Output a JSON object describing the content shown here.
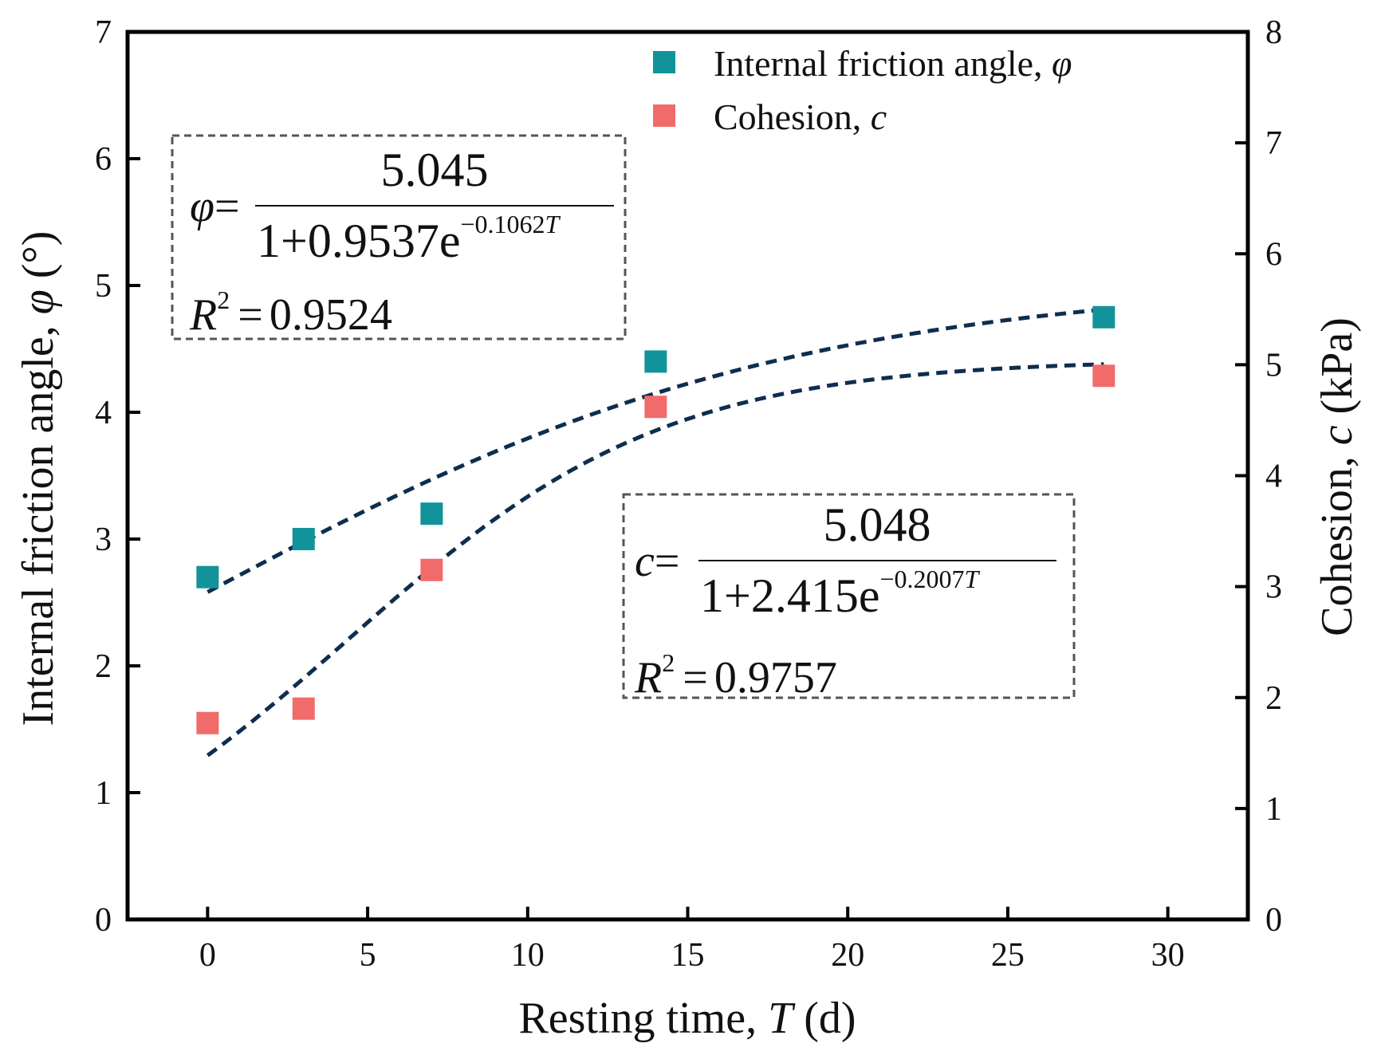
{
  "chart_data": {
    "type": "scatter",
    "title": "",
    "xlabel": "Resting time, T (d)",
    "xlabel_parts": {
      "prefix": "Resting time, ",
      "var": "T",
      "suffix": " (d)"
    },
    "ylabel_left": "Internal friction angle, φ (°)",
    "ylabel_left_parts": {
      "prefix": "Internal friction angle, ",
      "var": "φ",
      "suffix": " (°)"
    },
    "ylabel_right": "Cohesion, c (kPa)",
    "ylabel_right_parts": {
      "prefix": "Cohesion, ",
      "var": "c",
      "suffix": " (kPa)"
    },
    "xlim": [
      -2.5,
      32.5
    ],
    "ylim_left": [
      0,
      7
    ],
    "ylim_right": [
      0,
      8
    ],
    "x_ticks": [
      0,
      5,
      10,
      15,
      20,
      25,
      30
    ],
    "y_left_ticks": [
      0,
      1,
      2,
      3,
      4,
      5,
      6,
      7
    ],
    "y_right_ticks": [
      0,
      1,
      2,
      3,
      4,
      5,
      6,
      7,
      8
    ],
    "grid": false,
    "legend_position": "top-right",
    "series": [
      {
        "name": "Internal friction angle, φ",
        "legend_prefix": "Internal friction angle, ",
        "legend_var": "φ",
        "axis": "left",
        "color": "#12939A",
        "marker": "square",
        "x": [
          0,
          3,
          7,
          14,
          28
        ],
        "y": [
          2.7,
          3.0,
          3.2,
          4.4,
          4.75
        ],
        "fit": {
          "type": "logistic",
          "a": 5.045,
          "b": 0.9537,
          "k": 0.1062,
          "color": "#0F2D4F"
        }
      },
      {
        "name": "Cohesion, c",
        "legend_prefix": "Cohesion, ",
        "legend_var": "c",
        "axis": "right",
        "color": "#F26B6B",
        "marker": "square",
        "x": [
          0,
          3,
          7,
          14,
          28
        ],
        "y": [
          1.77,
          1.9,
          3.15,
          4.62,
          4.9
        ],
        "fit": {
          "type": "logistic",
          "a": 5.048,
          "b": 2.415,
          "k": 0.2007,
          "color": "#0F2D4F"
        }
      }
    ],
    "annotations": [
      {
        "id": "phi",
        "lhs": "φ",
        "eq": "=",
        "numerator": "5.045",
        "den_main": "1+0.9537e",
        "den_exp": "−0.1062",
        "den_exp_var": "T",
        "r2_label": "R",
        "r2_sup": "2",
        "r2_eq": "=",
        "r2_value": "0.9524"
      },
      {
        "id": "c",
        "lhs": "c",
        "eq": "=",
        "numerator": "5.048",
        "den_main": "1+2.415e",
        "den_exp": "−0.2007",
        "den_exp_var": "T",
        "r2_label": "R",
        "r2_sup": "2",
        "r2_eq": "=",
        "r2_value": "0.9757"
      }
    ]
  }
}
